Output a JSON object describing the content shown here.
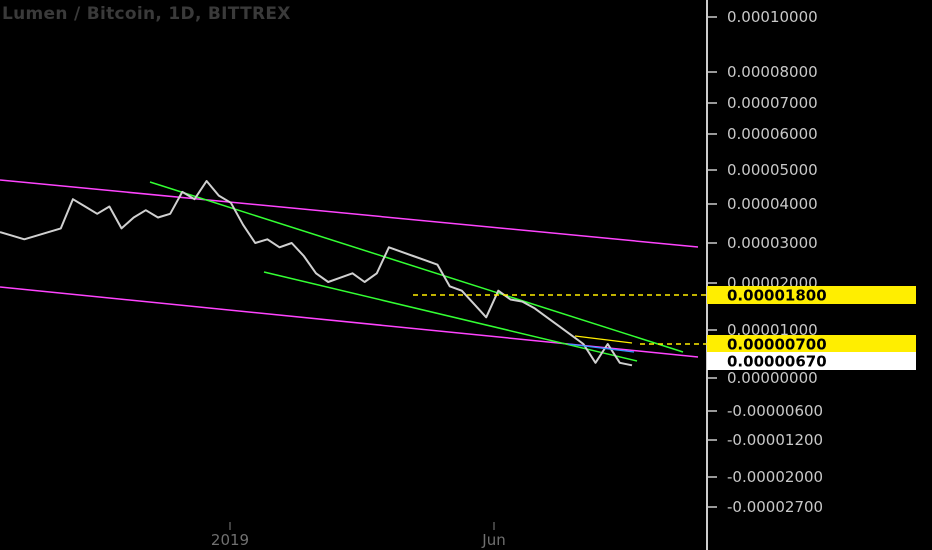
{
  "chart_data": {
    "type": "line",
    "title": "Lumen / Bitcoin, 1D, BITTREX",
    "x_labels": [
      "2019",
      "Jun"
    ],
    "y_ticks": [
      "0.00010000",
      "0.00008000",
      "0.00007000",
      "0.00006000",
      "0.00005000",
      "0.00004000",
      "0.00003000",
      "0.00002000",
      "0.00001000",
      "0.00000000",
      "-0.00000600",
      "-0.00001200",
      "-0.00002000",
      "-0.00002700"
    ],
    "price_tags": [
      {
        "label": "0.00001800",
        "color": "#ffee00"
      },
      {
        "label": "0.00000700",
        "color": "#ffee00"
      },
      {
        "label": "0.00000670",
        "color": "#ffffff"
      }
    ],
    "series": [
      {
        "color": "#d0d0d0",
        "values": [
          3.3e-05,
          3.2e-05,
          3.1e-05,
          3.2e-05,
          3.3e-05,
          3.4e-05,
          4.2e-05,
          4e-05,
          3.8e-05,
          4e-05,
          3.4e-05,
          3.7e-05,
          3.9e-05,
          3.7e-05,
          3.8e-05,
          4.4e-05,
          4.2e-05,
          4.7e-05,
          4.3e-05,
          4.1e-05,
          3.5e-05,
          3e-05,
          3.1e-05,
          2.9e-05,
          3e-05,
          2.7e-05,
          2.3e-05,
          2.1e-05,
          2.2e-05,
          2.3e-05,
          2.1e-05,
          2.3e-05,
          2.9e-05,
          2.8e-05,
          2.7e-05,
          2.6e-05,
          2.5e-05,
          2e-05,
          1.9e-05,
          1.6e-05,
          1.3e-05,
          1.9e-05,
          1.7e-05,
          1.65e-05,
          1.5e-05,
          1.3e-05,
          1.1e-05,
          9e-06,
          7e-06,
          6e-06,
          7e-06,
          6e-06,
          5e-06
        ]
      }
    ],
    "trendlines": [
      {
        "color": "#ff44ff"
      },
      {
        "color": "#ff44ff"
      },
      {
        "color": "#33ff33"
      },
      {
        "color": "#33ff33"
      }
    ],
    "grid": false,
    "background": "#000000",
    "axis_color": "#cccccc"
  }
}
